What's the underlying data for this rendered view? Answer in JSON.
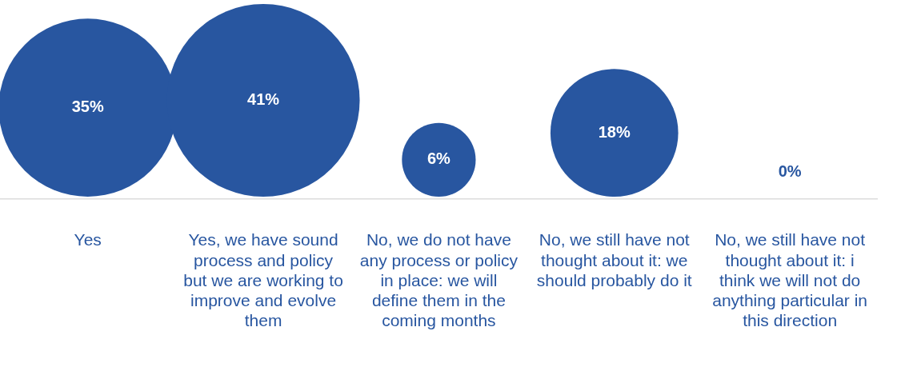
{
  "chart_data": {
    "type": "other",
    "categories": [
      "Yes",
      "Yes, we have sound process and policy but we are working to improve and evolve them",
      "No, we do not have any process or policy in place: we will define them in the coming months",
      "No, we still have not thought about it: we should probably do it",
      "No, we still have not thought about it: i think we will not do anything particular in this direction"
    ],
    "values": [
      35,
      41,
      6,
      18,
      0
    ],
    "value_labels": [
      "35%",
      "41%",
      "6%",
      "18%",
      "0%"
    ],
    "color": "#2856a0"
  }
}
